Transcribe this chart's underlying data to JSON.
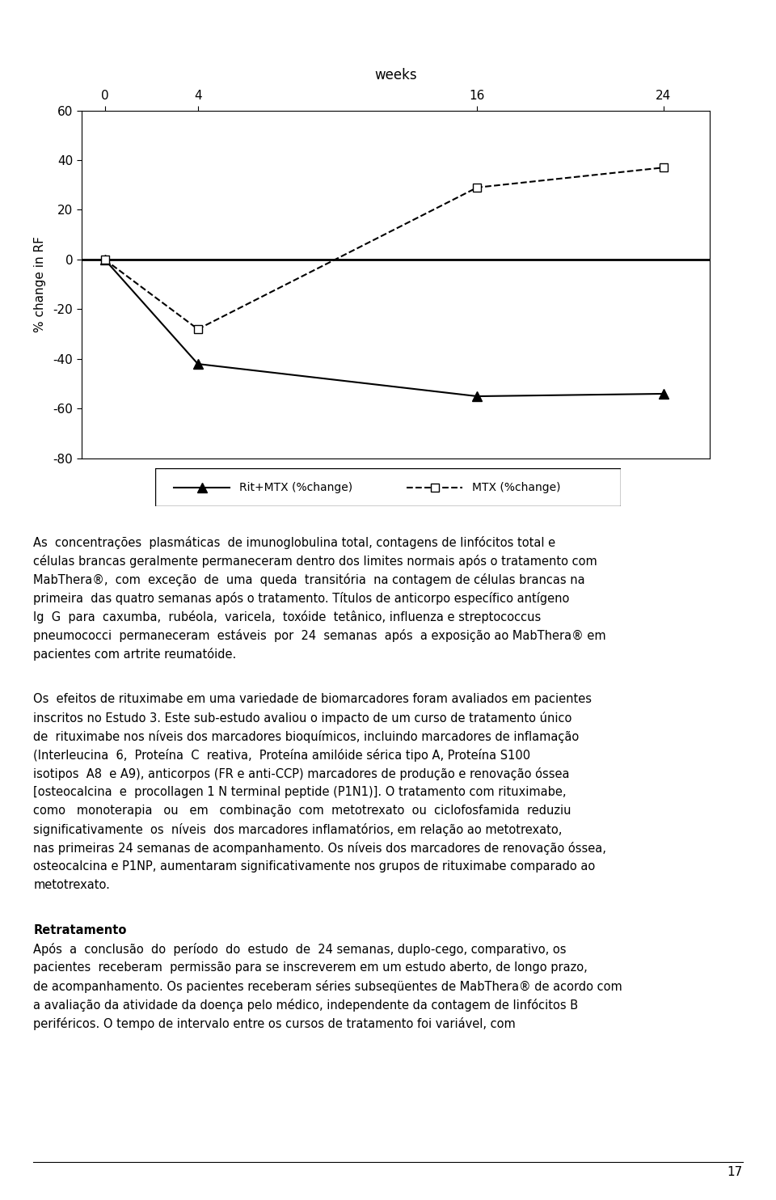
{
  "chart_title": "weeks",
  "x_values": [
    0,
    4,
    16,
    24
  ],
  "rit_mtx_values": [
    0,
    -42,
    -55,
    -54
  ],
  "mtx_values": [
    0,
    -28,
    29,
    37
  ],
  "ylabel": "% change in RF",
  "ylim": [
    -80,
    60
  ],
  "yticks": [
    -80,
    -60,
    -40,
    -20,
    0,
    20,
    40,
    60
  ],
  "xlim": [
    -1,
    26
  ],
  "legend_rit": "Rit+MTX (%change)",
  "legend_mtx": "MTX (%change)",
  "line_color": "#000000",
  "background_color": "#ffffff",
  "para1": "As concentrações plasmáticas de imunoglobulina total, contagens de linfócitos total e células brancas geralmente permaneceram dentro dos limites normais após o tratamento com MabThera®, com exceção de uma queda transitória na contagem de células brancas na primeira das quatro semanas após o tratamento. Títulos de anticorpo específico antígeno Ig G para caxumba, rubéola, varicela, toxóide tetânico, influenza e streptococcus pneumococci permaneceram estáveis por 24 semanas após a exposição ao MabThera® em pacientes com artrite reumatóide.",
  "para2": "Os efeitos de rituximabe em uma variedade de biomarcadores foram avaliados em pacientes inscritos no Estudo 3. Este sub-estudo avaliou o impacto de um curso de tratamento único de rituximabe nos níveis dos marcadores bioquímicos, incluindo marcadores de inflamação (Interleucina 6, Proteína C reativa, Proteína amilóide sérica tipo A, Proteína S100 isotipos A8 e A9), anticorpos (FR e anti-CCP) marcadores de produção e renovação óssea [osteocalcina e procollagen 1 N terminal peptide (P1N1)]. O tratamento com rituximabe, como monoterapia ou em combinação com metotrexato ou ciclofosfamida reduziu significativamente os níveis dos marcadores inflamatórios, em relação ao metotrexato, nas primeiras 24 semanas de acompanhamento. Os níveis dos marcadores de renovação óssea, osteocalcina e P1NP, aumentaram significativamente nos grupos de rituximabe comparado ao metotrexato.",
  "para3_title": "Retratamento",
  "para3": "Após a conclusão do período do estudo de 24 semanas, duplo-cego, comparativo, os pacientes receberam permissão para se inscreverem em um estudo aberto, de longo prazo, de acompanhamento. Os pacientes receberam séries subseqüentes de MabThera® de acordo com a avaliação da atividade da doença pelo médico, independente da contagem de linfócitos B periféricos. O tempo de intervalo entre os cursos de tratamento foi variável, com",
  "page_number": "17"
}
